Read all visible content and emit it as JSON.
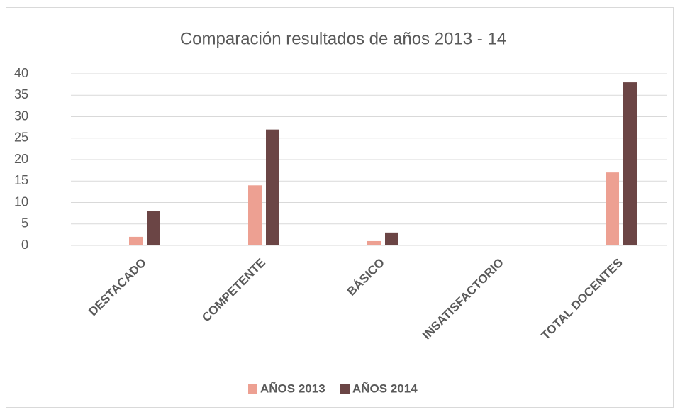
{
  "chart_data": {
    "type": "bar",
    "title": "Comparación resultados de años  2013 - 14",
    "categories": [
      "DESTACADO",
      "COMPETENTE",
      "BÁSICO",
      "INSATISFACTORIO",
      "TOTAL DOCENTES"
    ],
    "series": [
      {
        "name": "AÑOS 2013",
        "color": "#eda092",
        "values": [
          2,
          14,
          1,
          0,
          17
        ]
      },
      {
        "name": "AÑOS 2014",
        "color": "#6b4545",
        "values": [
          8,
          27,
          3,
          0,
          38
        ]
      }
    ],
    "ylim": [
      0,
      40
    ],
    "yticks": [
      0,
      5,
      10,
      15,
      20,
      25,
      30,
      35,
      40
    ],
    "grid": true,
    "legend": "bottom"
  }
}
